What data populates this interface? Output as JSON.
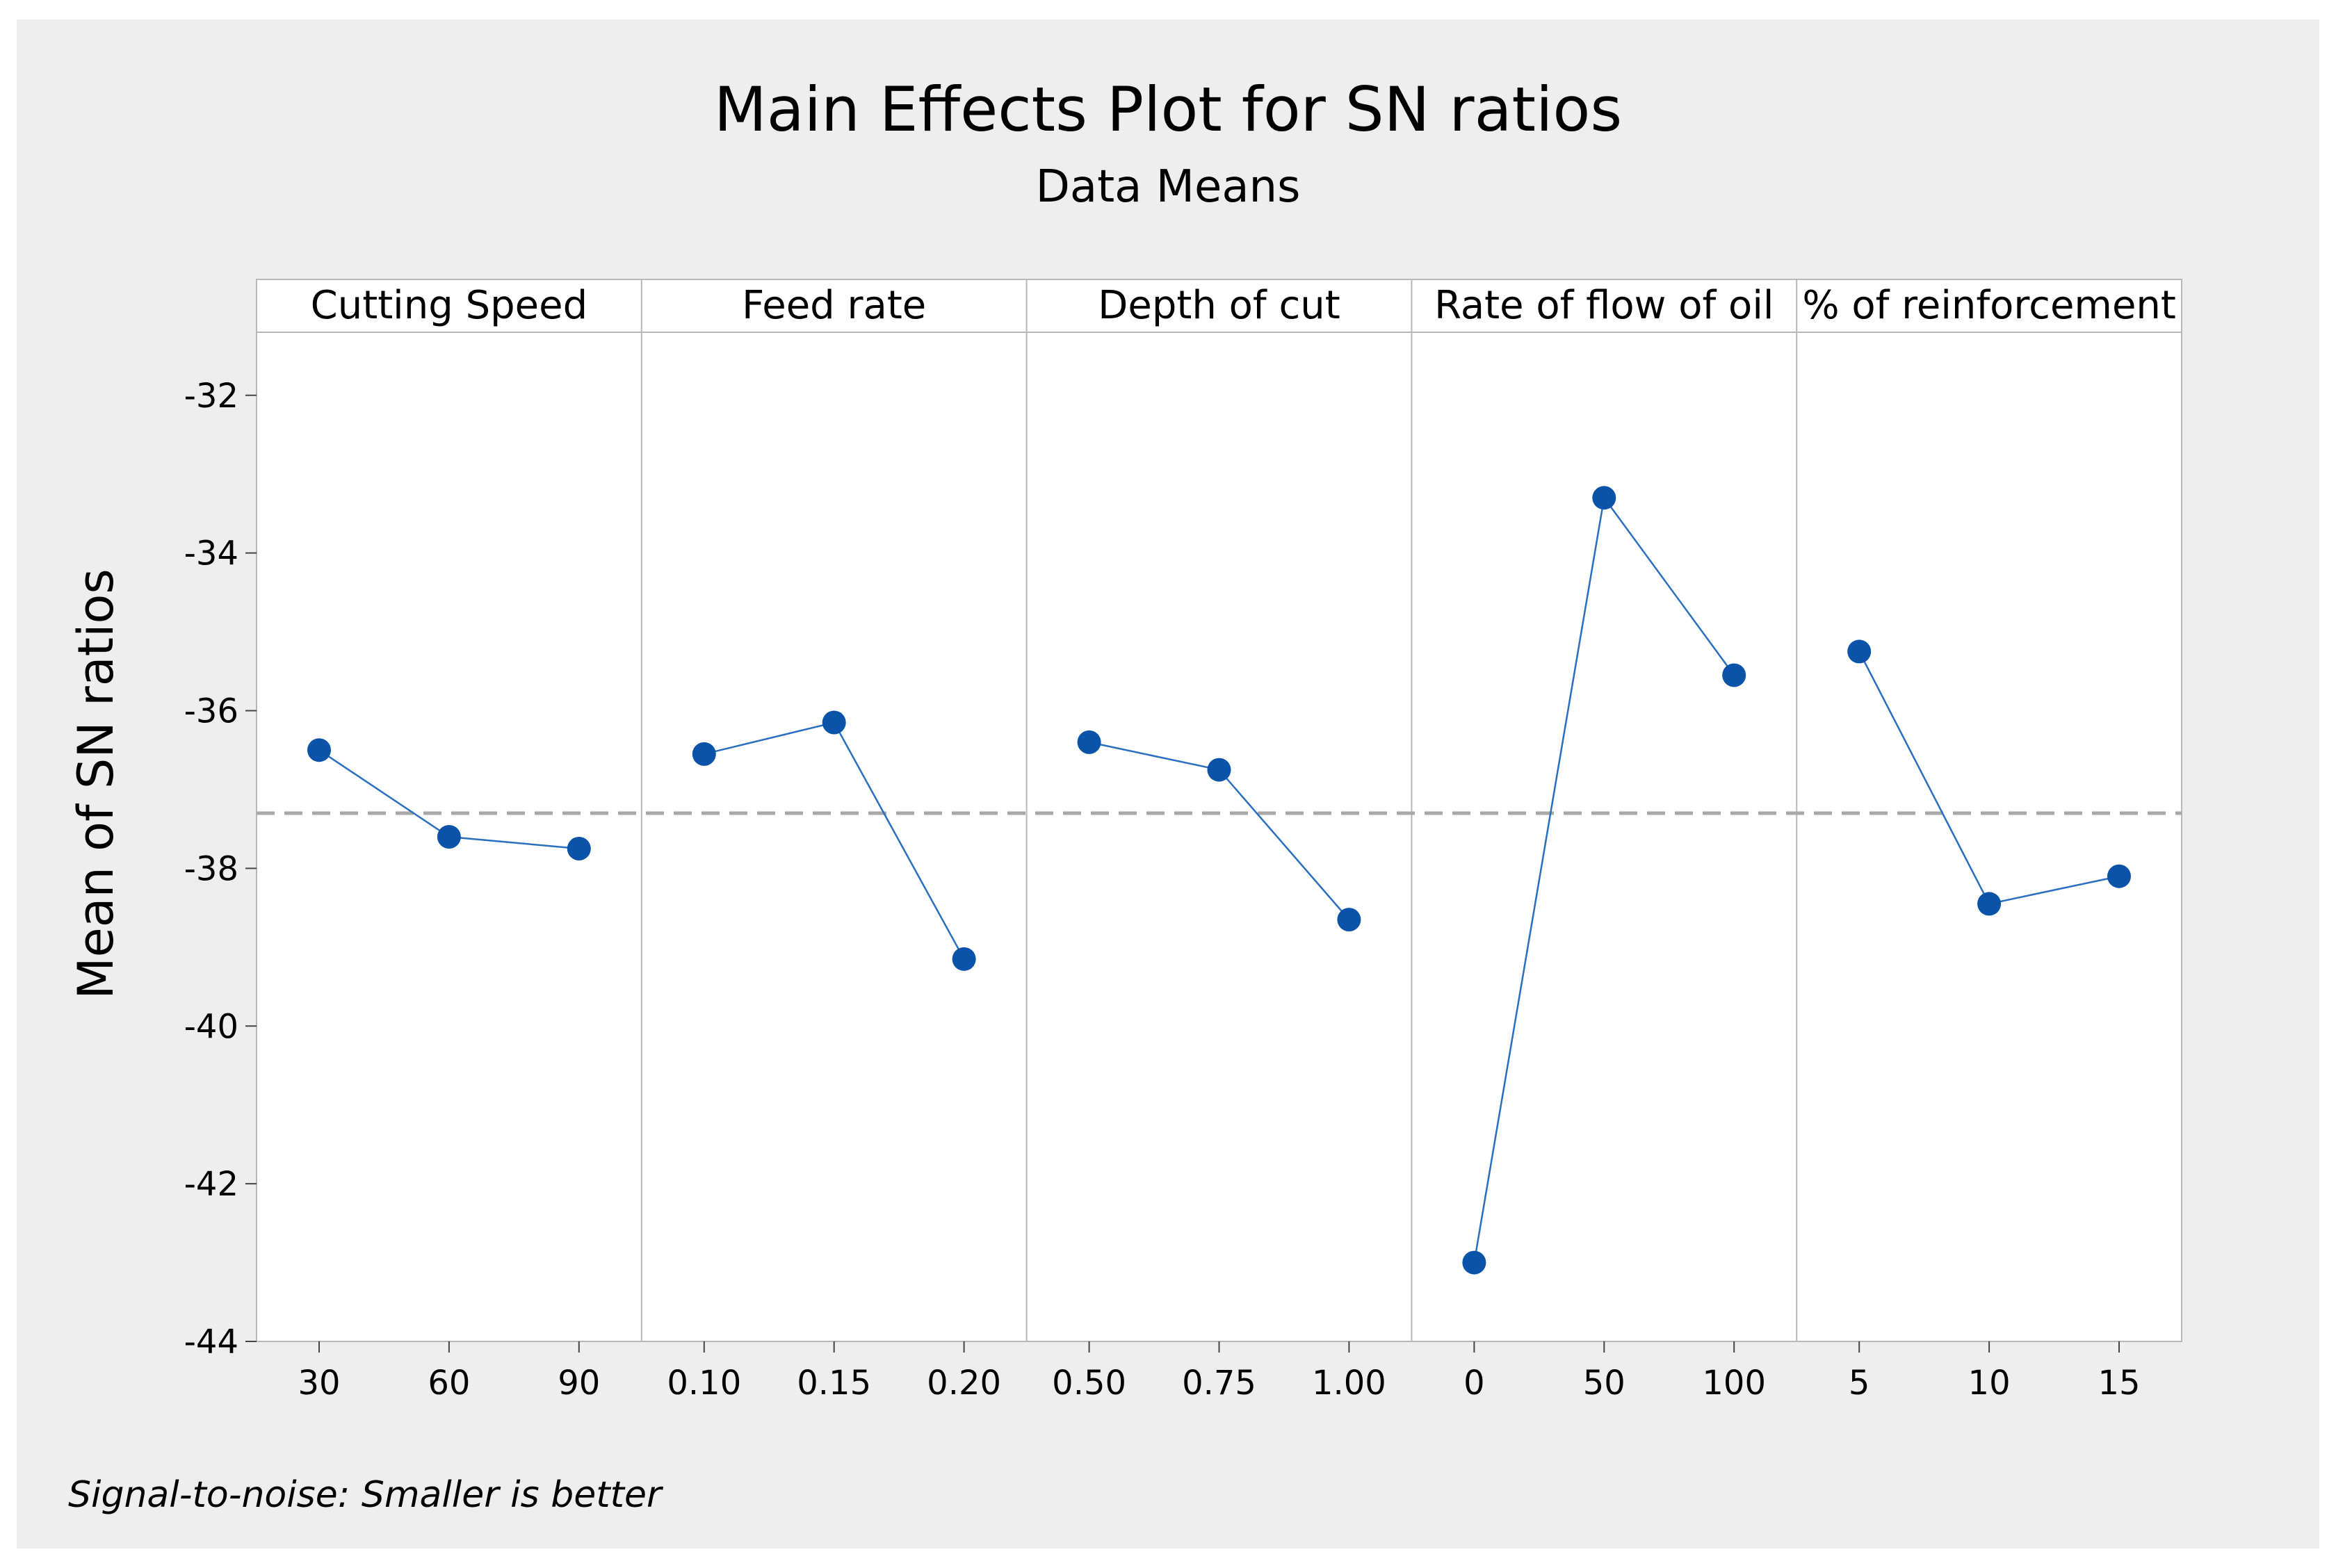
{
  "chart_data": {
    "type": "line",
    "title": "Main Effects Plot for SN ratios",
    "subtitle": "Data Means",
    "ylabel": "Mean of SN ratios",
    "xlabel": "",
    "ylim": [
      -44,
      -31.2
    ],
    "yticks": [
      "-32",
      "-34",
      "-36",
      "-38",
      "-40",
      "-42",
      "-44"
    ],
    "ytick_values": [
      -32,
      -34,
      -36,
      -38,
      -40,
      -42,
      -44
    ],
    "reference_line": -37.3,
    "footnote": "Signal-to-noise: Smaller is better",
    "series_color": "#0a53a8",
    "line_color": "#2a6ec0",
    "reference_color": "#a8a8a8",
    "panels": [
      {
        "name": "Cutting Speed",
        "categories": [
          "30",
          "60",
          "90"
        ],
        "values": [
          -36.5,
          -37.6,
          -37.75
        ]
      },
      {
        "name": "Feed rate",
        "categories": [
          "0.10",
          "0.15",
          "0.20"
        ],
        "values": [
          -36.55,
          -36.15,
          -39.15
        ]
      },
      {
        "name": "Depth of cut",
        "categories": [
          "0.50",
          "0.75",
          "1.00"
        ],
        "values": [
          -36.4,
          -36.75,
          -38.65
        ]
      },
      {
        "name": "Rate of flow of oil",
        "categories": [
          "0",
          "50",
          "100"
        ],
        "values": [
          -43.0,
          -33.3,
          -35.55
        ]
      },
      {
        "name": "% of reinforcement",
        "categories": [
          "5",
          "10",
          "15"
        ],
        "values": [
          -35.25,
          -38.45,
          -38.1
        ]
      }
    ]
  }
}
